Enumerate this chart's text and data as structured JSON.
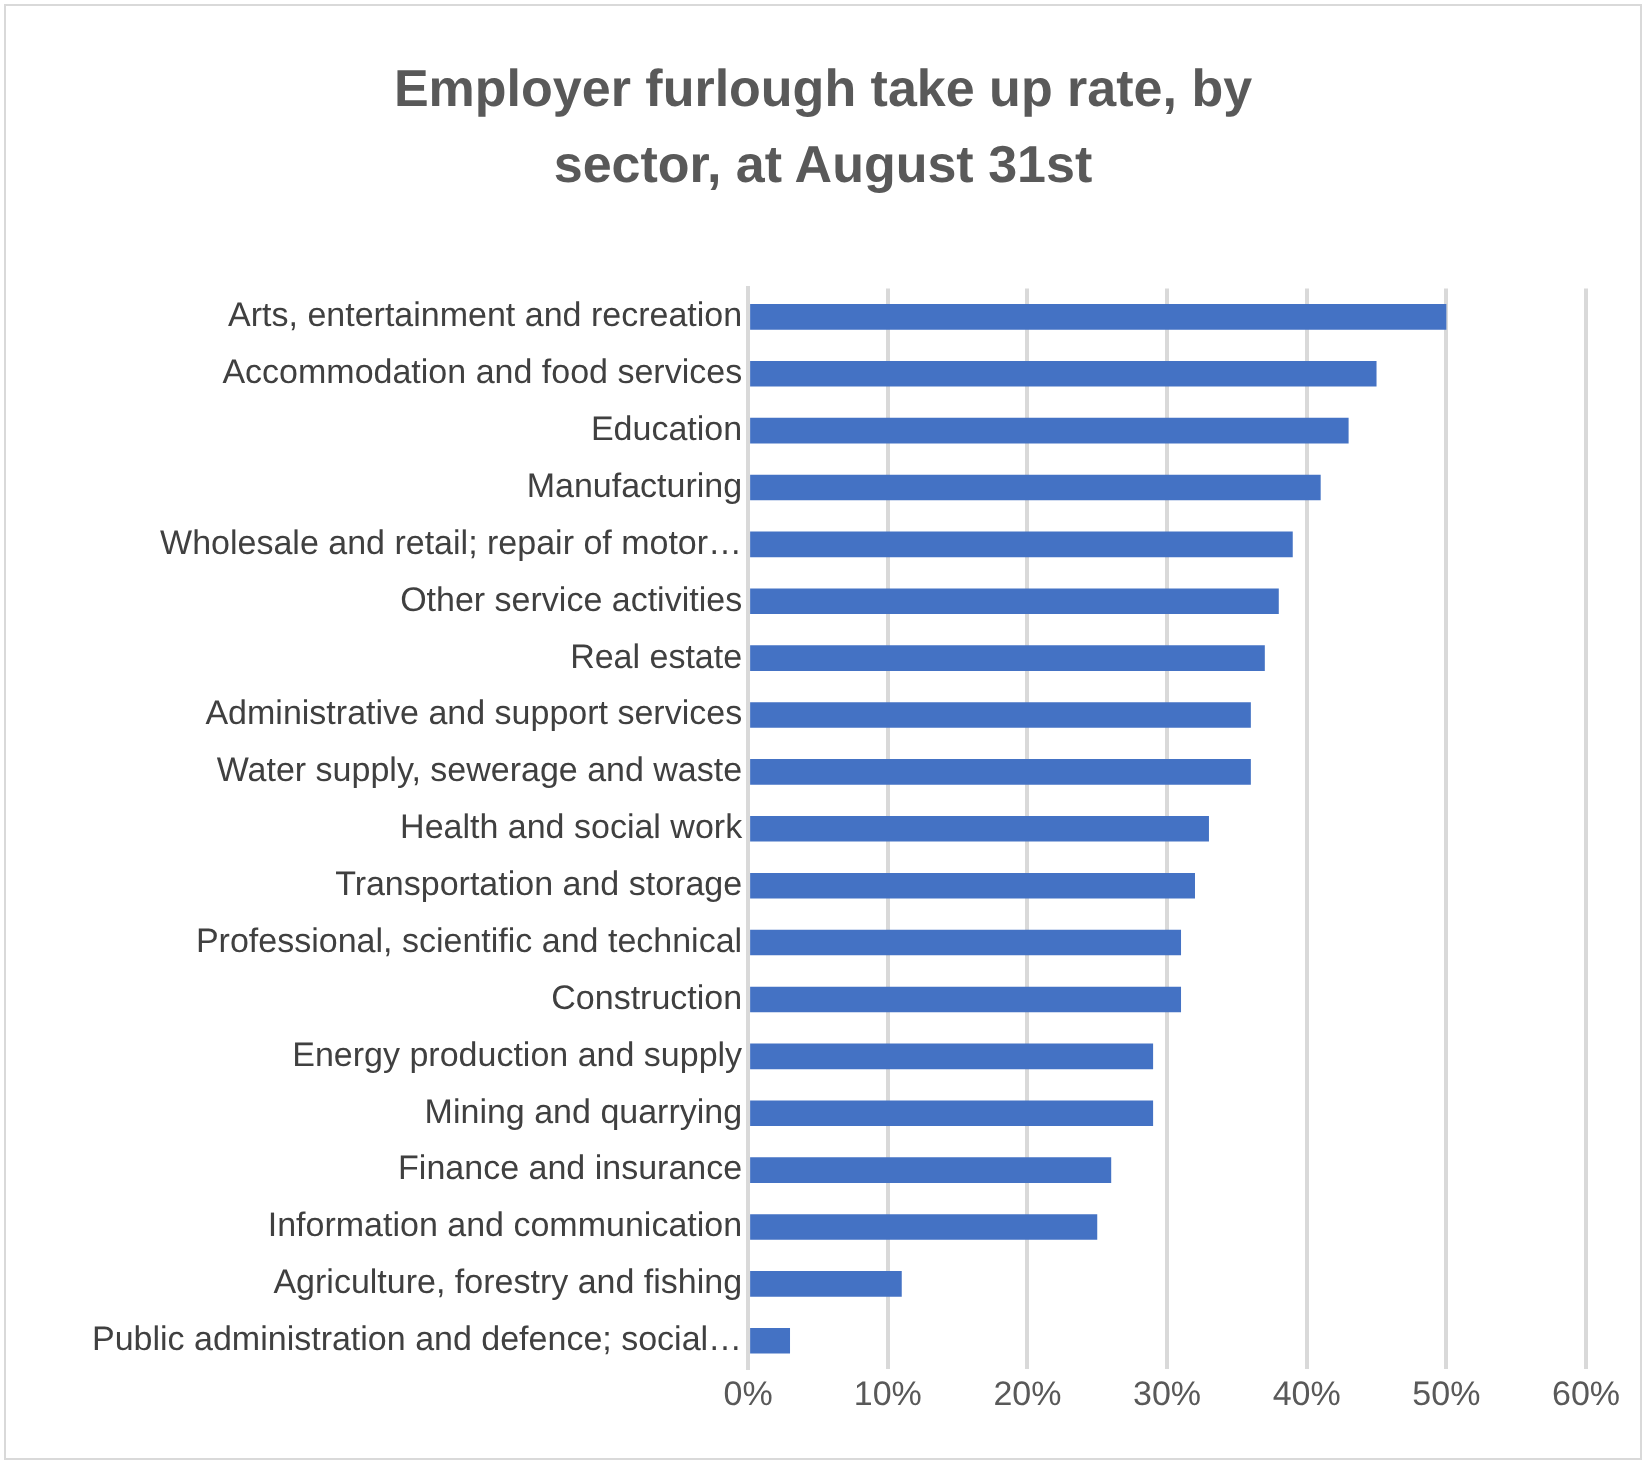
{
  "chart_data": {
    "type": "bar",
    "orientation": "horizontal",
    "title": "Employer furlough take up rate, by sector, at August 31st",
    "categories": [
      "Arts, entertainment and recreation",
      "Accommodation and food services",
      "Education",
      "Manufacturing",
      "Wholesale and retail; repair of motor…",
      "Other service activities",
      "Real estate",
      "Administrative and support services",
      "Water supply, sewerage and waste",
      "Health and social work",
      "Transportation and storage",
      "Professional, scientific and technical",
      "Construction",
      "Energy production and supply",
      "Mining and quarrying",
      "Finance and insurance",
      "Information and communication",
      "Agriculture, forestry and fishing",
      "Public administration and defence; social…"
    ],
    "values": [
      50,
      45,
      43,
      41,
      39,
      38,
      37,
      36,
      36,
      33,
      32,
      31,
      31,
      29,
      29,
      26,
      25,
      11,
      3
    ],
    "color": "#4472c4",
    "xlim": [
      0,
      60
    ],
    "xticks": [
      {
        "value": 0,
        "label": "0%"
      },
      {
        "value": 10,
        "label": "10%"
      },
      {
        "value": 20,
        "label": "20%"
      },
      {
        "value": 30,
        "label": "30%"
      },
      {
        "value": 40,
        "label": "40%"
      },
      {
        "value": 50,
        "label": "50%"
      },
      {
        "value": 60,
        "label": "60%"
      }
    ],
    "grid": "x",
    "legend": false
  }
}
